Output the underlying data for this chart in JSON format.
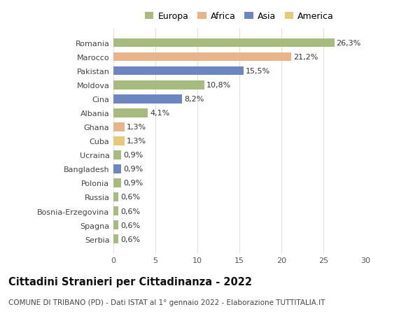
{
  "countries": [
    "Romania",
    "Marocco",
    "Pakistan",
    "Moldova",
    "Cina",
    "Albania",
    "Ghana",
    "Cuba",
    "Ucraina",
    "Bangladesh",
    "Polonia",
    "Russia",
    "Bosnia-Erzegovina",
    "Spagna",
    "Serbia"
  ],
  "values": [
    26.3,
    21.2,
    15.5,
    10.8,
    8.2,
    4.1,
    1.3,
    1.3,
    0.9,
    0.9,
    0.9,
    0.6,
    0.6,
    0.6,
    0.6
  ],
  "labels": [
    "26,3%",
    "21,2%",
    "15,5%",
    "10,8%",
    "8,2%",
    "4,1%",
    "1,3%",
    "1,3%",
    "0,9%",
    "0,9%",
    "0,9%",
    "0,6%",
    "0,6%",
    "0,6%",
    "0,6%"
  ],
  "colors": [
    "#a8bb7e",
    "#e8b48a",
    "#6b86c0",
    "#a8bb7e",
    "#6b86c0",
    "#a8bb7e",
    "#e8b48a",
    "#e8c87a",
    "#a8bb7e",
    "#6b86c0",
    "#a8bb7e",
    "#a8bb7e",
    "#a8bb7e",
    "#a8bb7e",
    "#a8bb7e"
  ],
  "legend_labels": [
    "Europa",
    "Africa",
    "Asia",
    "America"
  ],
  "legend_colors": [
    "#a8bb7e",
    "#e8b48a",
    "#6b86c0",
    "#e8c87a"
  ],
  "title": "Cittadini Stranieri per Cittadinanza - 2022",
  "subtitle": "COMUNE DI TRIBANO (PD) - Dati ISTAT al 1° gennaio 2022 - Elaborazione TUTTITALIA.IT",
  "xlim": [
    0,
    30
  ],
  "xticks": [
    0,
    5,
    10,
    15,
    20,
    25,
    30
  ],
  "background_color": "#ffffff",
  "grid_color": "#e0e0e0",
  "bar_height": 0.62,
  "label_fontsize": 8,
  "tick_fontsize": 8,
  "title_fontsize": 10.5,
  "subtitle_fontsize": 7.5,
  "legend_fontsize": 9
}
